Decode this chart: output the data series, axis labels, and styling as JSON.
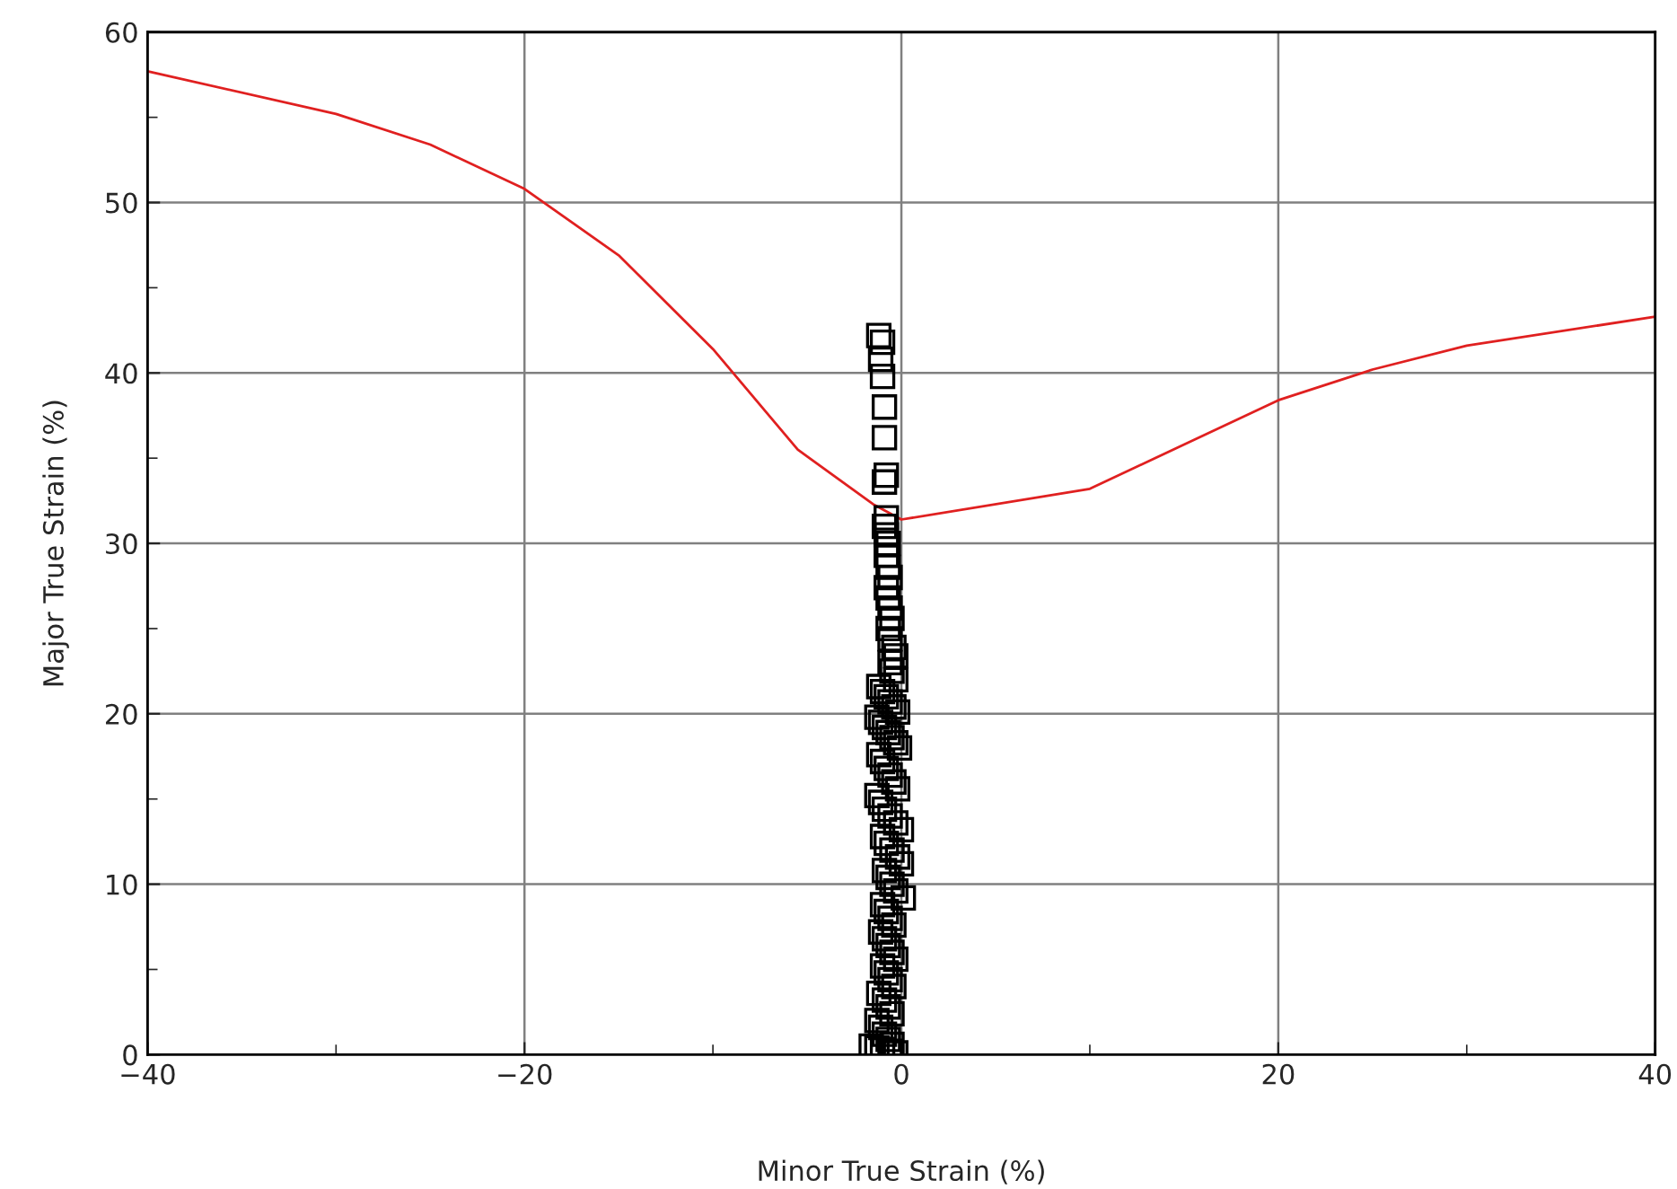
{
  "chart_data": {
    "type": "scatter",
    "xlabel": "Minor True Strain (%)",
    "ylabel": "Major True Strain (%)",
    "xlim": [
      -40,
      40
    ],
    "ylim": [
      0,
      60
    ],
    "xticks": [
      -40,
      {
        "value": -30,
        "label": null
      },
      -20,
      {
        "value": -10,
        "label": null
      },
      0,
      {
        "value": 10,
        "label": null
      },
      20,
      {
        "value": 30,
        "label": null
      },
      40
    ],
    "yticks": [
      0,
      {
        "value": 5,
        "label": null
      },
      10,
      {
        "value": 15,
        "label": null
      },
      20,
      {
        "value": 25,
        "label": null
      },
      30,
      {
        "value": 35,
        "label": null
      },
      40,
      {
        "value": 45,
        "label": null
      },
      50,
      {
        "value": 55,
        "label": null
      },
      60
    ],
    "grid": true,
    "series": [
      {
        "type": "line",
        "marker": "none",
        "color": "#e02020",
        "x": [
          -40,
          -30,
          -25,
          -20,
          -15,
          -10,
          -5.5,
          -1.5,
          0,
          10,
          15,
          20,
          25,
          30,
          40
        ],
        "values": [
          57.7,
          55.2,
          53.4,
          50.8,
          46.9,
          41.4,
          35.5,
          32.3,
          31.4,
          33.2,
          35.8,
          38.4,
          40.2,
          41.6,
          43.3
        ]
      },
      {
        "marker": "square",
        "color": "#000000",
        "x": [
          -1.2,
          -1.0,
          -1.1,
          -1.0,
          -0.9,
          -0.9,
          -0.8,
          -0.9,
          -0.8,
          -0.9,
          -0.8,
          -0.7,
          -0.8,
          -0.7,
          -0.6,
          -0.8,
          -0.7,
          -0.6,
          -0.5,
          -0.7,
          -0.6,
          -0.4,
          -0.3,
          -0.6,
          -0.5,
          -0.3,
          -1.2,
          -1.0,
          -0.8,
          -0.6,
          -0.4,
          -0.2,
          -1.3,
          -1.1,
          -0.9,
          -0.7,
          -0.5,
          -0.3,
          -0.1,
          -1.2,
          -1.0,
          -0.8,
          -0.6,
          -0.4,
          -0.2,
          -1.3,
          -1.1,
          -0.9,
          -0.6,
          -0.3,
          0.0,
          -1.0,
          -0.8,
          -0.5,
          -0.2,
          0.0,
          -0.9,
          -0.7,
          -0.5,
          -0.3,
          0.1,
          -1.0,
          -0.8,
          -0.6,
          -0.4,
          -1.1,
          -0.9,
          -0.7,
          -0.5,
          -0.3,
          -1.0,
          -0.8,
          -0.6,
          -0.4,
          -1.2,
          -0.9,
          -0.7,
          -0.5,
          -1.3,
          -1.1,
          -0.9,
          -0.7,
          -0.5,
          -1.6,
          -1.3,
          -1.0,
          -0.6,
          -0.3
        ],
        "values": [
          42.2,
          41.8,
          40.8,
          39.8,
          38.0,
          36.2,
          34.0,
          33.6,
          31.5,
          31.0,
          30.5,
          30.0,
          29.3,
          28.6,
          28.0,
          27.4,
          26.8,
          26.2,
          25.6,
          25.0,
          24.4,
          23.9,
          23.4,
          23.0,
          22.5,
          22.0,
          21.6,
          21.3,
          21.0,
          20.7,
          20.4,
          20.1,
          19.8,
          19.5,
          19.2,
          18.9,
          18.6,
          18.3,
          18.0,
          17.6,
          17.2,
          16.8,
          16.4,
          16.0,
          15.6,
          15.2,
          14.8,
          14.4,
          14.0,
          13.6,
          13.2,
          12.8,
          12.4,
          12.0,
          11.6,
          11.2,
          10.8,
          10.4,
          10.0,
          9.6,
          9.2,
          8.8,
          8.4,
          8.0,
          7.6,
          7.2,
          6.8,
          6.4,
          6.0,
          5.6,
          5.2,
          4.8,
          4.4,
          4.0,
          3.6,
          3.2,
          2.8,
          2.4,
          2.0,
          1.6,
          1.2,
          0.9,
          0.6,
          0.5,
          0.4,
          0.3,
          0.2,
          0.1
        ]
      }
    ]
  }
}
